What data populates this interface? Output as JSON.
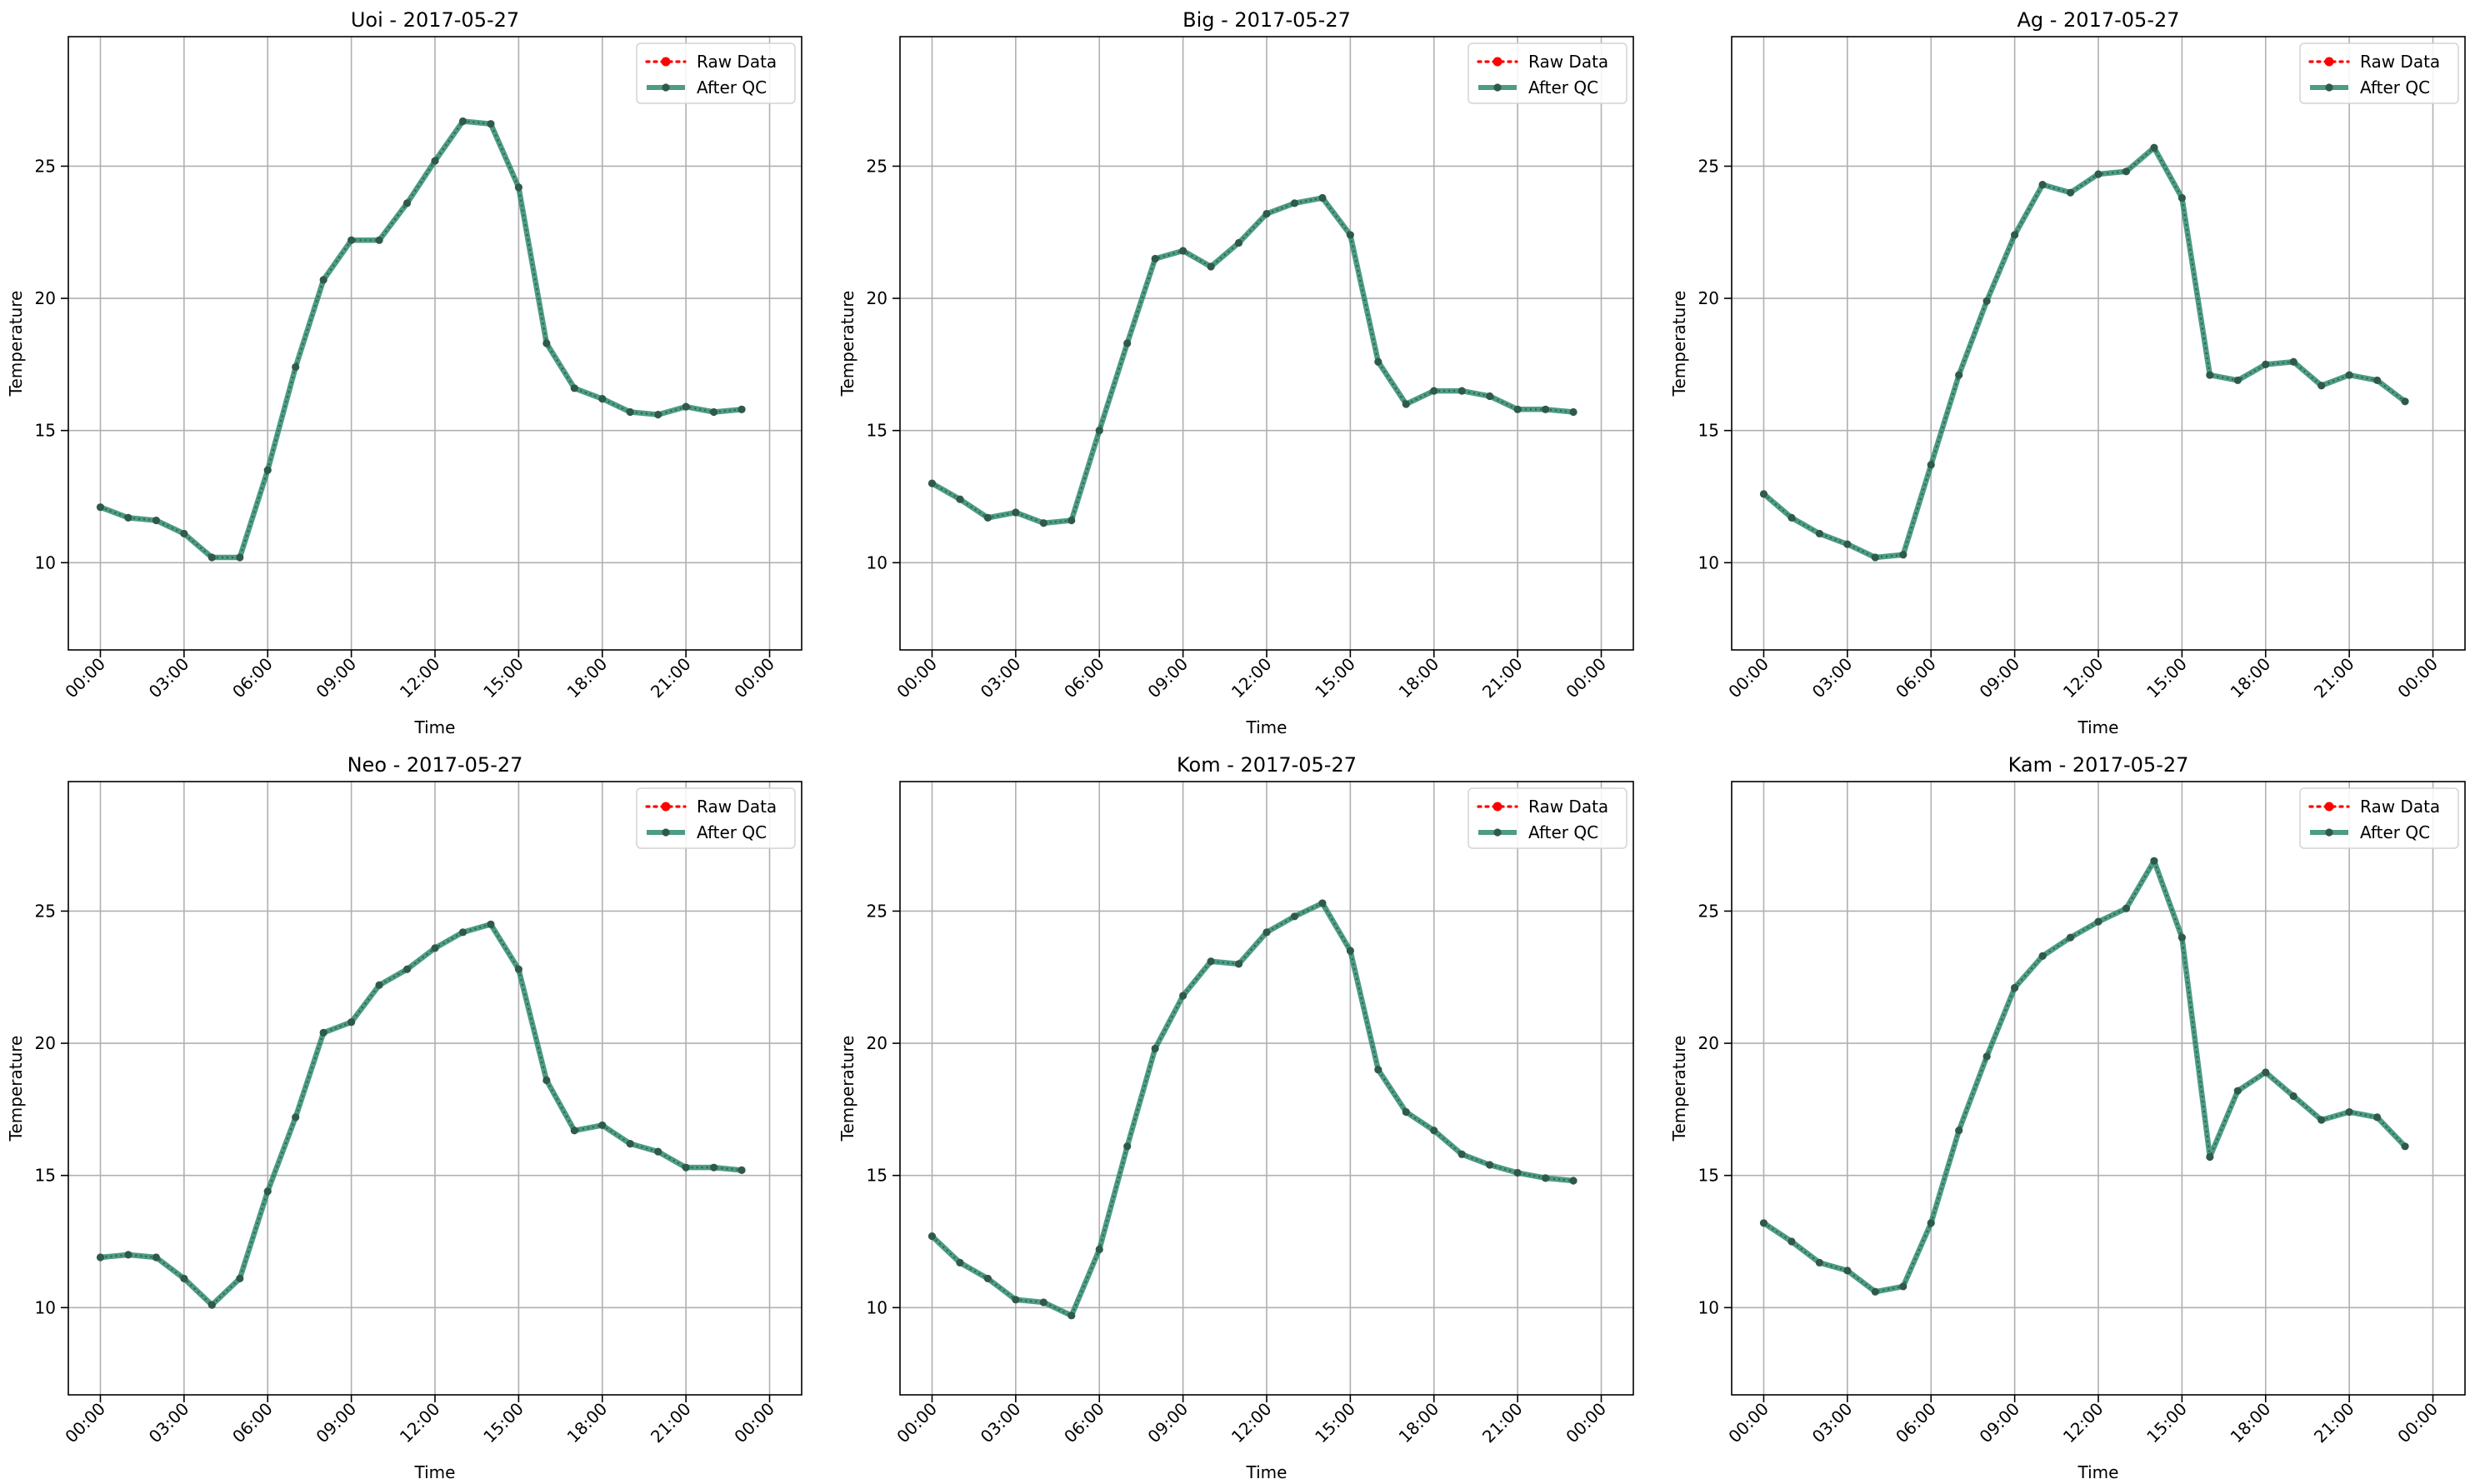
{
  "figure": {
    "legend": {
      "raw_label": "Raw Data",
      "qc_label": "After QC"
    },
    "colors": {
      "raw": "#ff0000",
      "qc": "#2e8b70",
      "marker": "#2f5a4a",
      "grid": "#b0b0b0",
      "axes": "#000000"
    }
  },
  "chart_data": [
    {
      "type": "line",
      "title": "Uoi - 2017-05-27",
      "xlabel": "Time",
      "ylabel": "Temperature",
      "x_ticks": [
        "00:00",
        "03:00",
        "06:00",
        "09:00",
        "12:00",
        "15:00",
        "18:00",
        "21:00",
        "00:00"
      ],
      "y_ticks": [
        10,
        15,
        20,
        25
      ],
      "ylim": [
        6.7,
        29.9
      ],
      "grid": true,
      "legend_position": "top-right",
      "x_hours": [
        0,
        1,
        2,
        3,
        4,
        5,
        6,
        7,
        8,
        9,
        10,
        11,
        12,
        13,
        14,
        15,
        16,
        17,
        18,
        19,
        20,
        21,
        22,
        23
      ],
      "series": [
        {
          "name": "Raw Data",
          "style": "dotted",
          "values": [
            12.1,
            11.7,
            11.6,
            11.1,
            10.2,
            10.2,
            13.5,
            17.4,
            20.7,
            22.2,
            22.2,
            23.6,
            25.2,
            26.7,
            26.6,
            24.2,
            18.3,
            16.6,
            16.2,
            15.7,
            15.6,
            15.9,
            15.7,
            15.8
          ]
        },
        {
          "name": "After QC",
          "style": "solid",
          "values": [
            12.1,
            11.7,
            11.6,
            11.1,
            10.2,
            10.2,
            13.5,
            17.4,
            20.7,
            22.2,
            22.2,
            23.6,
            25.2,
            26.7,
            26.6,
            24.2,
            18.3,
            16.6,
            16.2,
            15.7,
            15.6,
            15.9,
            15.7,
            15.8
          ]
        }
      ]
    },
    {
      "type": "line",
      "title": "Big - 2017-05-27",
      "xlabel": "Time",
      "ylabel": "Temperature",
      "x_ticks": [
        "00:00",
        "03:00",
        "06:00",
        "09:00",
        "12:00",
        "15:00",
        "18:00",
        "21:00",
        "00:00"
      ],
      "y_ticks": [
        10,
        15,
        20,
        25
      ],
      "ylim": [
        6.7,
        29.9
      ],
      "grid": true,
      "legend_position": "top-right",
      "x_hours": [
        0,
        1,
        2,
        3,
        4,
        5,
        6,
        7,
        8,
        9,
        10,
        11,
        12,
        13,
        14,
        15,
        16,
        17,
        18,
        19,
        20,
        21,
        22,
        23
      ],
      "series": [
        {
          "name": "Raw Data",
          "style": "dotted",
          "values": [
            13.0,
            12.4,
            11.7,
            11.9,
            11.5,
            11.6,
            15.0,
            18.3,
            21.5,
            21.8,
            21.2,
            22.1,
            23.2,
            23.6,
            23.8,
            22.4,
            17.6,
            16.0,
            16.5,
            16.5,
            16.3,
            15.8,
            15.8,
            15.7
          ]
        },
        {
          "name": "After QC",
          "style": "solid",
          "values": [
            13.0,
            12.4,
            11.7,
            11.9,
            11.5,
            11.6,
            15.0,
            18.3,
            21.5,
            21.8,
            21.2,
            22.1,
            23.2,
            23.6,
            23.8,
            22.4,
            17.6,
            16.0,
            16.5,
            16.5,
            16.3,
            15.8,
            15.8,
            15.7
          ]
        }
      ]
    },
    {
      "type": "line",
      "title": "Ag - 2017-05-27",
      "xlabel": "Time",
      "ylabel": "Temperature",
      "x_ticks": [
        "00:00",
        "03:00",
        "06:00",
        "09:00",
        "12:00",
        "15:00",
        "18:00",
        "21:00",
        "00:00"
      ],
      "y_ticks": [
        10,
        15,
        20,
        25
      ],
      "ylim": [
        6.7,
        29.9
      ],
      "grid": true,
      "legend_position": "top-right",
      "x_hours": [
        0,
        1,
        2,
        3,
        4,
        5,
        6,
        7,
        8,
        9,
        10,
        11,
        12,
        13,
        14,
        15,
        16,
        17,
        18,
        19,
        20,
        21,
        22,
        23
      ],
      "series": [
        {
          "name": "Raw Data",
          "style": "dotted",
          "values": [
            12.6,
            11.7,
            11.1,
            10.7,
            10.2,
            10.3,
            13.7,
            17.1,
            19.9,
            22.4,
            24.3,
            24.0,
            24.7,
            24.8,
            25.7,
            23.8,
            17.1,
            16.9,
            17.5,
            17.6,
            16.7,
            17.1,
            16.9,
            16.1
          ]
        },
        {
          "name": "After QC",
          "style": "solid",
          "values": [
            12.6,
            11.7,
            11.1,
            10.7,
            10.2,
            10.3,
            13.7,
            17.1,
            19.9,
            22.4,
            24.3,
            24.0,
            24.7,
            24.8,
            25.7,
            23.8,
            17.1,
            16.9,
            17.5,
            17.6,
            16.7,
            17.1,
            16.9,
            16.1
          ]
        }
      ]
    },
    {
      "type": "line",
      "title": "Neo - 2017-05-27",
      "xlabel": "Time",
      "ylabel": "Temperature",
      "x_ticks": [
        "00:00",
        "03:00",
        "06:00",
        "09:00",
        "12:00",
        "15:00",
        "18:00",
        "21:00",
        "00:00"
      ],
      "y_ticks": [
        10,
        15,
        20,
        25
      ],
      "ylim": [
        6.7,
        29.9
      ],
      "grid": true,
      "legend_position": "top-right",
      "x_hours": [
        0,
        1,
        2,
        3,
        4,
        5,
        6,
        7,
        8,
        9,
        10,
        11,
        12,
        13,
        14,
        15,
        16,
        17,
        18,
        19,
        20,
        21,
        22,
        23
      ],
      "series": [
        {
          "name": "Raw Data",
          "style": "dotted",
          "values": [
            11.9,
            12.0,
            11.9,
            11.1,
            10.1,
            11.1,
            14.4,
            17.2,
            20.4,
            20.8,
            22.2,
            22.8,
            23.6,
            24.2,
            24.5,
            22.8,
            18.6,
            16.7,
            16.9,
            16.2,
            15.9,
            15.3,
            15.3,
            15.2
          ]
        },
        {
          "name": "After QC",
          "style": "solid",
          "values": [
            11.9,
            12.0,
            11.9,
            11.1,
            10.1,
            11.1,
            14.4,
            17.2,
            20.4,
            20.8,
            22.2,
            22.8,
            23.6,
            24.2,
            24.5,
            22.8,
            18.6,
            16.7,
            16.9,
            16.2,
            15.9,
            15.3,
            15.3,
            15.2
          ]
        }
      ]
    },
    {
      "type": "line",
      "title": "Kom - 2017-05-27",
      "xlabel": "Time",
      "ylabel": "Temperature",
      "x_ticks": [
        "00:00",
        "03:00",
        "06:00",
        "09:00",
        "12:00",
        "15:00",
        "18:00",
        "21:00",
        "00:00"
      ],
      "y_ticks": [
        10,
        15,
        20,
        25
      ],
      "ylim": [
        6.7,
        29.9
      ],
      "grid": true,
      "legend_position": "top-right",
      "x_hours": [
        0,
        1,
        2,
        3,
        4,
        5,
        6,
        7,
        8,
        9,
        10,
        11,
        12,
        13,
        14,
        15,
        16,
        17,
        18,
        19,
        20,
        21,
        22,
        23
      ],
      "series": [
        {
          "name": "Raw Data",
          "style": "dotted",
          "values": [
            12.7,
            11.7,
            11.1,
            10.3,
            10.2,
            9.7,
            12.2,
            16.1,
            19.8,
            21.8,
            23.1,
            23.0,
            24.2,
            24.8,
            25.3,
            23.5,
            19.0,
            17.4,
            16.7,
            15.8,
            15.4,
            15.1,
            14.9,
            14.8
          ]
        },
        {
          "name": "After QC",
          "style": "solid",
          "values": [
            12.7,
            11.7,
            11.1,
            10.3,
            10.2,
            9.7,
            12.2,
            16.1,
            19.8,
            21.8,
            23.1,
            23.0,
            24.2,
            24.8,
            25.3,
            23.5,
            19.0,
            17.4,
            16.7,
            15.8,
            15.4,
            15.1,
            14.9,
            14.8
          ]
        }
      ]
    },
    {
      "type": "line",
      "title": "Kam - 2017-05-27",
      "xlabel": "Time",
      "ylabel": "Temperature",
      "x_ticks": [
        "00:00",
        "03:00",
        "06:00",
        "09:00",
        "12:00",
        "15:00",
        "18:00",
        "21:00",
        "00:00"
      ],
      "y_ticks": [
        10,
        15,
        20,
        25
      ],
      "ylim": [
        6.7,
        29.9
      ],
      "grid": true,
      "legend_position": "top-right",
      "x_hours": [
        0,
        1,
        2,
        3,
        4,
        5,
        6,
        7,
        8,
        9,
        10,
        11,
        12,
        13,
        14,
        15,
        16,
        17,
        18,
        19,
        20,
        21,
        22,
        23
      ],
      "series": [
        {
          "name": "Raw Data",
          "style": "dotted",
          "values": [
            13.2,
            12.5,
            11.7,
            11.4,
            10.6,
            10.8,
            13.2,
            16.7,
            19.5,
            22.1,
            23.3,
            24.0,
            24.6,
            25.1,
            26.9,
            24.0,
            15.7,
            18.2,
            18.9,
            18.0,
            17.1,
            17.4,
            17.2,
            16.1
          ]
        },
        {
          "name": "After QC",
          "style": "solid",
          "values": [
            13.2,
            12.5,
            11.7,
            11.4,
            10.6,
            10.8,
            13.2,
            16.7,
            19.5,
            22.1,
            23.3,
            24.0,
            24.6,
            25.1,
            26.9,
            24.0,
            15.7,
            18.2,
            18.9,
            18.0,
            17.1,
            17.4,
            17.2,
            16.1
          ]
        }
      ]
    }
  ]
}
